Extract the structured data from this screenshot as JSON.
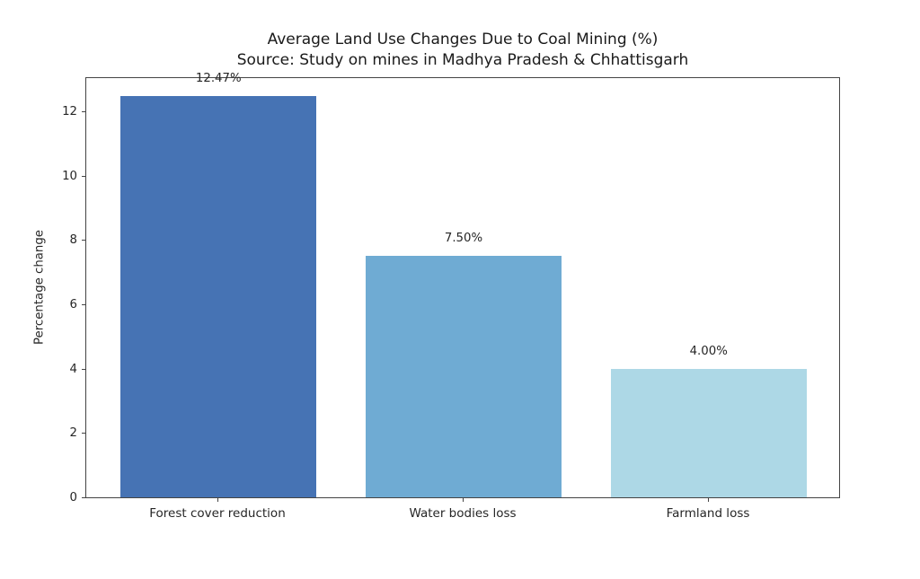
{
  "figure": {
    "background": "#ffffff"
  },
  "chart_data": {
    "type": "bar",
    "title": "Average Land Use Changes Due to Coal Mining (%)",
    "subtitle": "Source: Study on mines in Madhya Pradesh & Chhattisgarh",
    "categories": [
      "Forest cover reduction",
      "Water bodies loss",
      "Farmland loss"
    ],
    "values": [
      12.47,
      7.5,
      4.0
    ],
    "value_labels": [
      "12.47%",
      "7.50%",
      "4.00%"
    ],
    "bar_colors": [
      "#4673b4",
      "#6fabd3",
      "#add8e6"
    ],
    "xlabel": "",
    "ylabel": "Percentage change",
    "yticks": [
      0,
      2,
      4,
      6,
      8,
      10,
      12
    ],
    "ylim": [
      0,
      13.09
    ],
    "xlim": [
      -0.54,
      2.54
    ],
    "bar_width_fraction": 0.8,
    "grid": false,
    "legend": null,
    "axis_color": "#444444",
    "text_color": "#262626"
  }
}
